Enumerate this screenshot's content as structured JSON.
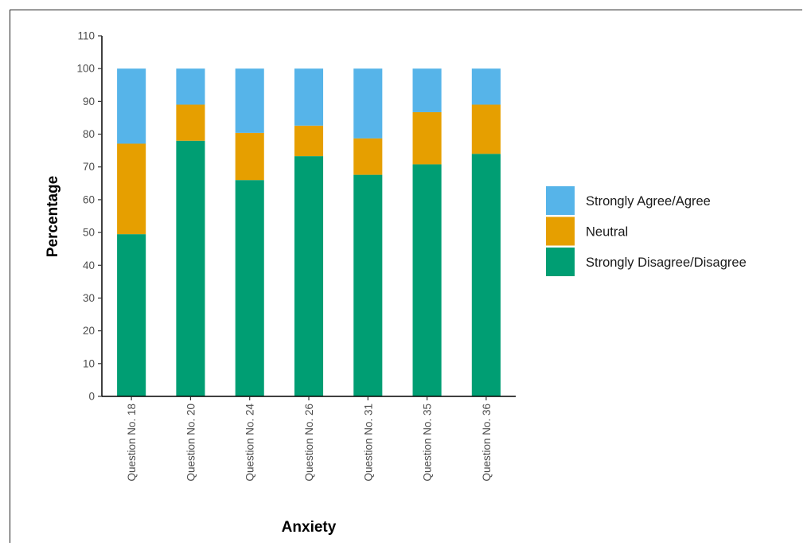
{
  "chart_data": {
    "type": "bar",
    "stacked": true,
    "title": "",
    "xlabel": "Anxiety",
    "ylabel": "Percentage",
    "ylim": [
      0,
      110
    ],
    "yticks": [
      0,
      10,
      20,
      30,
      40,
      50,
      60,
      70,
      80,
      90,
      100,
      110
    ],
    "categories": [
      "Question No. 18",
      "Question No. 20",
      "Question No. 24",
      "Question No. 26",
      "Question No. 31",
      "Question No. 35",
      "Question No. 36"
    ],
    "series": [
      {
        "name": "Strongly Disagree/Disagree",
        "color": "#009E73",
        "values": [
          49.5,
          78,
          66,
          73.3,
          67.6,
          70.8,
          74
        ]
      },
      {
        "name": "Neutral",
        "color": "#E69F00",
        "values": [
          27.6,
          11,
          14.4,
          9.3,
          11.1,
          15.9,
          15
        ]
      },
      {
        "name": "Strongly Agree/Agree",
        "color": "#56B4E9",
        "values": [
          22.9,
          11,
          19.6,
          17.4,
          21.3,
          13.3,
          11
        ]
      }
    ],
    "legend": {
      "position": "right",
      "order": [
        "Strongly Agree/Agree",
        "Neutral",
        "Strongly Disagree/Disagree"
      ]
    },
    "grid": false
  }
}
